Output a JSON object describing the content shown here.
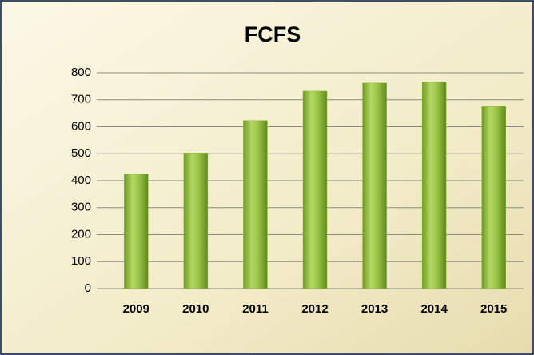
{
  "chart_data": {
    "type": "bar",
    "title": "FCFS",
    "categories": [
      "2009",
      "2010",
      "2011",
      "2012",
      "2013",
      "2014",
      "2015"
    ],
    "values": [
      425,
      503,
      623,
      732,
      762,
      766,
      675
    ],
    "color": "#8db83a",
    "ylim": [
      0,
      800
    ],
    "yticks": [
      0,
      100,
      200,
      300,
      400,
      500,
      600,
      700,
      800
    ],
    "grid": true
  }
}
